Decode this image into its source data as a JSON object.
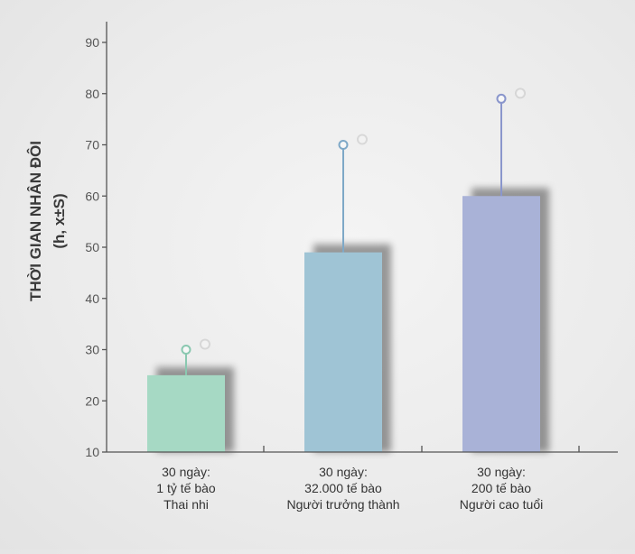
{
  "chart_data": {
    "type": "bar",
    "ylabel_lines": [
      "THỜI GIAN NHÂN ĐÔI",
      "(h, x±S)"
    ],
    "ylim": [
      10,
      90
    ],
    "yticks": [
      10,
      20,
      30,
      40,
      50,
      60,
      70,
      80,
      90
    ],
    "categories": [
      [
        "30 ngày:",
        "1 tỷ tế bào",
        "Thai nhi"
      ],
      [
        "30 ngày:",
        "32.000 tế bào",
        "Người trưởng thành"
      ],
      [
        "30 ngày:",
        "200 tế bào",
        "Người cao tuổi"
      ]
    ],
    "values": [
      25,
      49,
      60
    ],
    "error_upper": [
      30,
      70,
      79
    ],
    "colors": [
      "#a6d9c4",
      "#9fc4d5",
      "#a9b2d7"
    ],
    "error_colors": [
      "#8ac8b0",
      "#7ea8c7",
      "#8a96cc"
    ],
    "grid": false
  }
}
